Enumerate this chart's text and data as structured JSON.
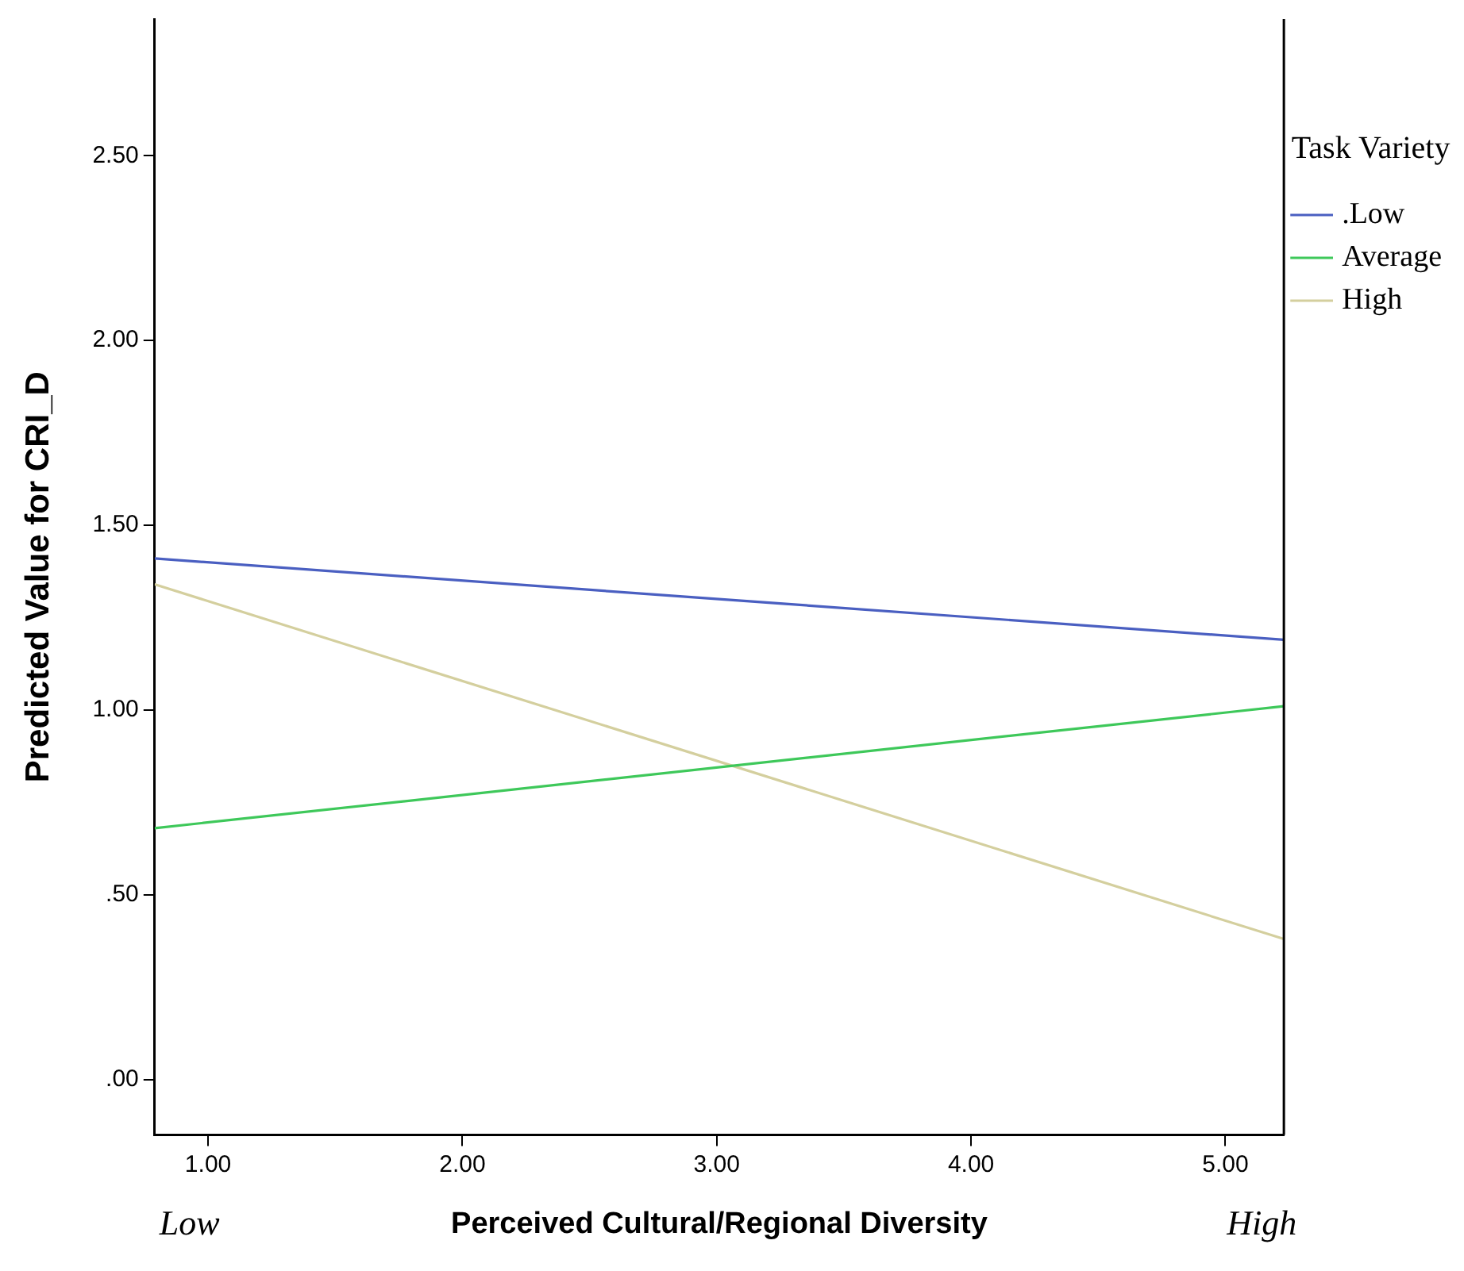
{
  "chart_data": {
    "type": "line",
    "xlabel": "Perceived Cultural/Regional Diversity",
    "ylabel": "Predicted Value for CRI_D",
    "legend_title": "Task Variety",
    "x": [
      0.79,
      5.23
    ],
    "series": [
      {
        "name": ".Low",
        "color": "#4a5fc1",
        "values": [
          1.41,
          1.19
        ]
      },
      {
        "name": "Average",
        "color": "#3ec85a",
        "values": [
          0.68,
          1.01
        ]
      },
      {
        "name": "High",
        "color": "#d4cf9e",
        "values": [
          1.34,
          0.38
        ]
      }
    ],
    "xlim": [
      0.79,
      5.23
    ],
    "ylim": [
      -0.15,
      2.87
    ],
    "xticks": [
      {
        "value": 1,
        "label": "1.00"
      },
      {
        "value": 2,
        "label": "2.00"
      },
      {
        "value": 3,
        "label": "3.00"
      },
      {
        "value": 4,
        "label": "4.00"
      },
      {
        "value": 5,
        "label": "5.00"
      }
    ],
    "yticks": [
      {
        "value": 0,
        "label": ".00"
      },
      {
        "value": 0.5,
        "label": ".50"
      },
      {
        "value": 1,
        "label": "1.00"
      },
      {
        "value": 1.5,
        "label": "1.50"
      },
      {
        "value": 2,
        "label": "2.00"
      },
      {
        "value": 2.5,
        "label": "2.50"
      }
    ],
    "annotations": [
      "Low",
      "High"
    ],
    "grid": false,
    "legend": "top right",
    "marker": "none",
    "line_style": "solid"
  }
}
